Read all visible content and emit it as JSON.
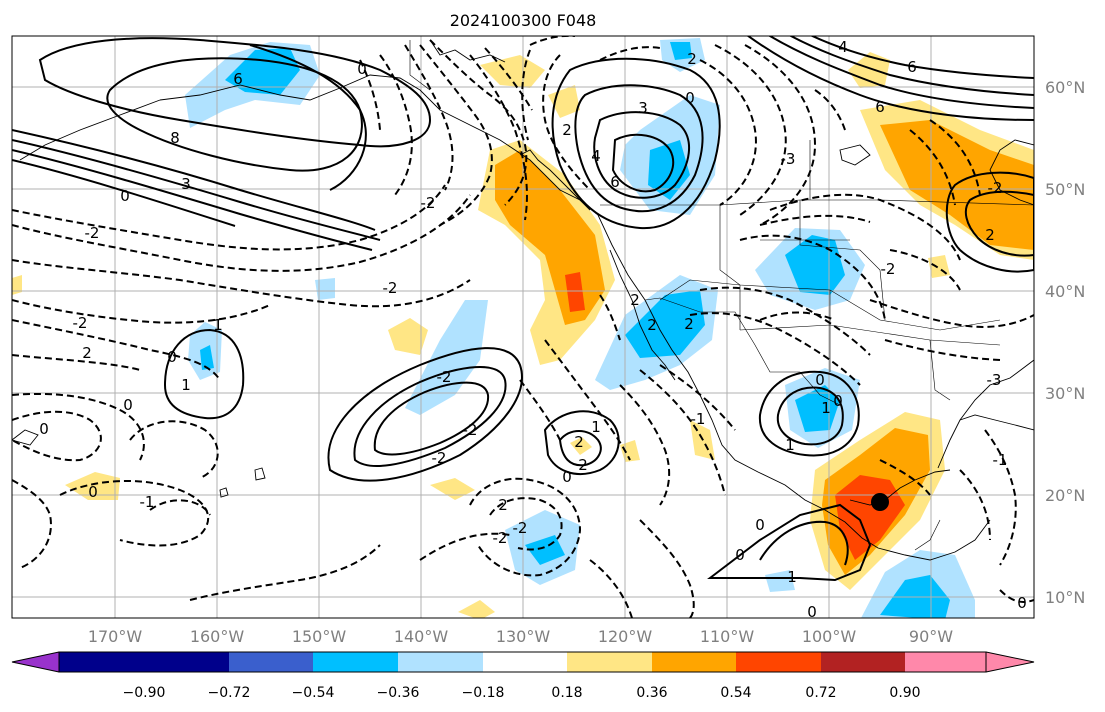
{
  "title": "2024100300 F048",
  "lat_labels": [
    "60°N",
    "50°N",
    "40°N",
    "30°N",
    "20°N",
    "10°N"
  ],
  "lon_labels": [
    "170°W",
    "160°W",
    "150°W",
    "140°W",
    "130°W",
    "120°W",
    "110°W",
    "100°W",
    "90°W"
  ],
  "colorbar": {
    "tick_labels": [
      "−0.90",
      "−0.72",
      "−0.54",
      "−0.36",
      "−0.18",
      "0.18",
      "0.36",
      "0.54",
      "0.72",
      "0.90"
    ],
    "colors": [
      "#9932cc",
      "#00008b",
      "#3a5fcd",
      "#00bfff",
      "#b0e2ff",
      "#ffffff",
      "#ffe685",
      "#ffa500",
      "#ff4500",
      "#b22222",
      "#ff88aa"
    ]
  },
  "contour_labels": [
    "6",
    "0",
    "8",
    "3",
    "0",
    "-2",
    "-2",
    "0",
    "2",
    "3",
    "6",
    "2",
    "4",
    "6",
    "2",
    "0",
    "-3",
    "2",
    "-2",
    "-2",
    "-2",
    "1",
    "0",
    "2",
    "0",
    "2",
    "1",
    "2",
    "0",
    "-1",
    "0",
    "-2",
    "-2",
    "0",
    "-3",
    "4",
    "6",
    "-1",
    "0",
    "0",
    "-2",
    "1",
    "2",
    "0",
    "1",
    "0",
    "1",
    "-1",
    "2",
    "2",
    "-2",
    "-2",
    "1",
    "0",
    "-2"
  ],
  "marker": "black-dot",
  "axis_ranges": {
    "lon": [
      "-180",
      "-80"
    ],
    "lat": [
      "8",
      "65"
    ]
  }
}
